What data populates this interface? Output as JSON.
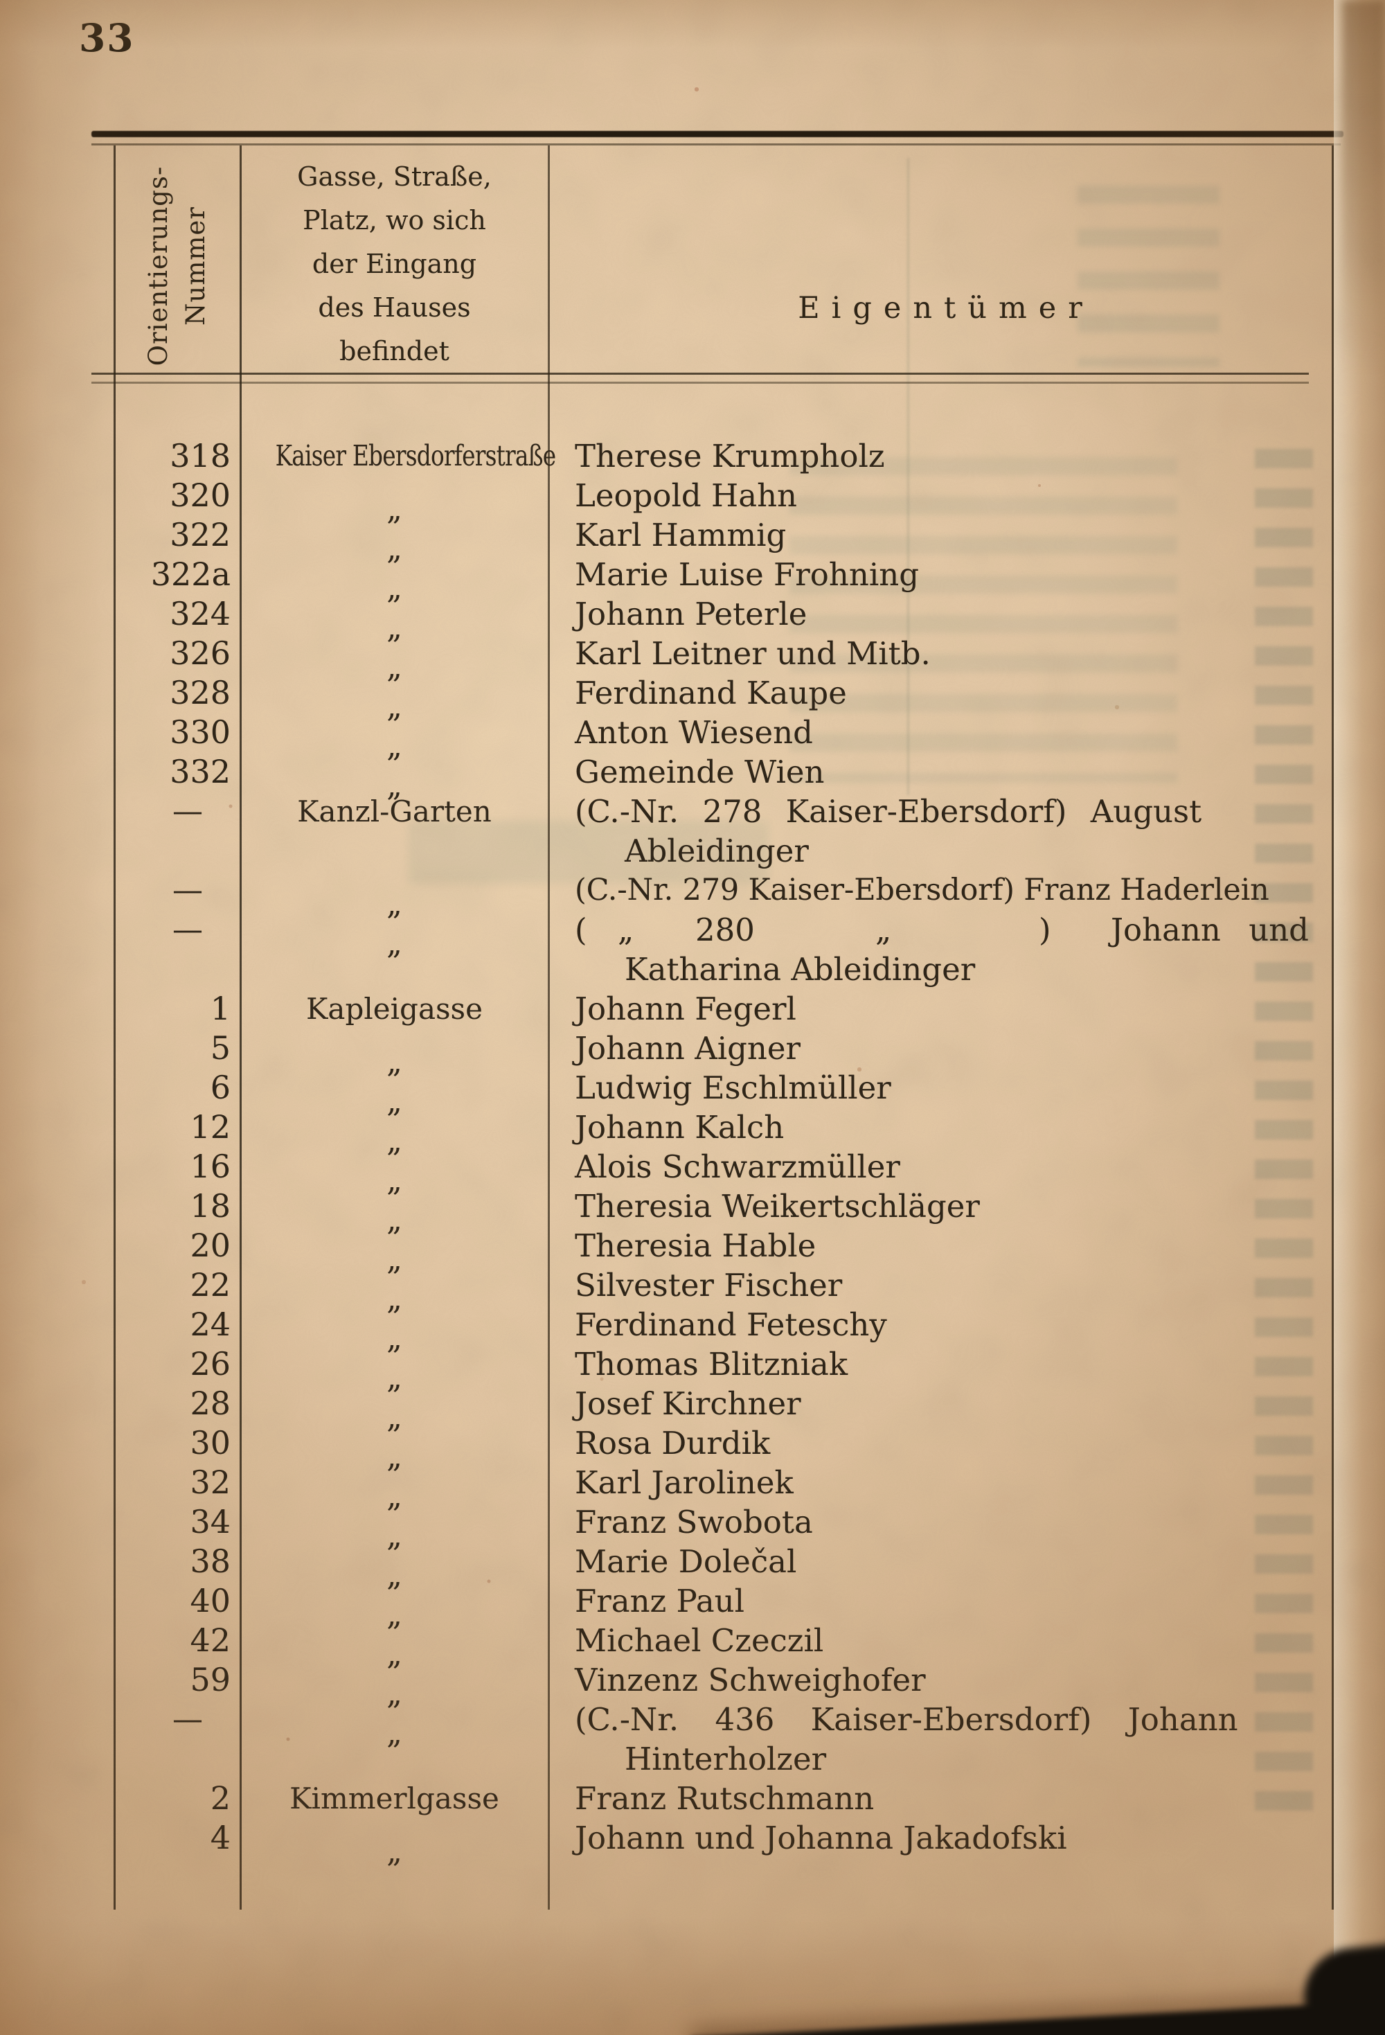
{
  "page_number": "33",
  "table": {
    "header": {
      "col1_line1": "Orientierungs-",
      "col1_line2": "Nummer",
      "col2_lines": [
        "Gasse, Straße,",
        "Platz, wo sich",
        "der Eingang",
        "des Hauses",
        "befindet"
      ],
      "col3": "Eigentümer"
    },
    "rows": [
      {
        "num": "318",
        "street": "Kaiser Ebersdorferstraße",
        "street_style": "condensed",
        "owner_lines": [
          "Therese Krumpholz"
        ]
      },
      {
        "num": "320",
        "street": "„",
        "street_style": "ditto",
        "owner_lines": [
          "Leopold Hahn"
        ]
      },
      {
        "num": "322",
        "street": "„",
        "street_style": "ditto",
        "owner_lines": [
          "Karl Hammig"
        ]
      },
      {
        "num": "322a",
        "street": "„",
        "street_style": "ditto",
        "owner_lines": [
          "Marie Luise Frohning"
        ]
      },
      {
        "num": "324",
        "street": "„",
        "street_style": "ditto",
        "owner_lines": [
          "Johann Peterle"
        ]
      },
      {
        "num": "326",
        "street": "„",
        "street_style": "ditto",
        "owner_lines": [
          "Karl Leitner und Mitb."
        ]
      },
      {
        "num": "328",
        "street": "„",
        "street_style": "ditto",
        "owner_lines": [
          "Ferdinand Kaupe"
        ]
      },
      {
        "num": "330",
        "street": "„",
        "street_style": "ditto",
        "owner_lines": [
          "Anton Wiesend"
        ]
      },
      {
        "num": "332",
        "street": "„",
        "street_style": "ditto",
        "owner_lines": [
          "Gemeinde Wien"
        ]
      },
      {
        "num": "—",
        "street": "Kanzl-Garten",
        "street_style": "name",
        "owner_lines": [
          {
            "t": "(C.-Nr. 278 Kaiser-Ebersdorf) August",
            "cls": "wide1"
          },
          {
            "t": "Ableidinger",
            "cls": "cont"
          }
        ]
      },
      {
        "num": "—",
        "street": "„",
        "street_style": "ditto",
        "owner_lines": [
          {
            "t": "(C.-Nr. 279 Kaiser-Ebersdorf) Franz Haderlein",
            "cls": "tight"
          }
        ]
      },
      {
        "num": "—",
        "street": "„",
        "street_style": "ditto",
        "owner_lines": [
          {
            "spread": [
              "(",
              "„",
              "280",
              "„",
              ")",
              "Johann und"
            ]
          },
          {
            "t": "Katharina Ableidinger",
            "cls": "cont"
          }
        ]
      },
      {
        "num": "1",
        "street": "Kapleigasse",
        "street_style": "name",
        "owner_lines": [
          "Johann Fegerl"
        ]
      },
      {
        "num": "5",
        "street": "„",
        "street_style": "ditto",
        "owner_lines": [
          "Johann Aigner"
        ]
      },
      {
        "num": "6",
        "street": "„",
        "street_style": "ditto",
        "owner_lines": [
          "Ludwig Eschlmüller"
        ]
      },
      {
        "num": "12",
        "street": "„",
        "street_style": "ditto",
        "owner_lines": [
          "Johann Kalch"
        ]
      },
      {
        "num": "16",
        "street": "„",
        "street_style": "ditto",
        "owner_lines": [
          "Alois Schwarzmüller"
        ]
      },
      {
        "num": "18",
        "street": "„",
        "street_style": "ditto",
        "owner_lines": [
          "Theresia Weikertschläger"
        ]
      },
      {
        "num": "20",
        "street": "„",
        "street_style": "ditto",
        "owner_lines": [
          "Theresia Hable"
        ]
      },
      {
        "num": "22",
        "street": "„",
        "street_style": "ditto",
        "owner_lines": [
          "Silvester Fischer"
        ]
      },
      {
        "num": "24",
        "street": "„",
        "street_style": "ditto",
        "owner_lines": [
          "Ferdinand Feteschy"
        ]
      },
      {
        "num": "26",
        "street": "„",
        "street_style": "ditto",
        "owner_lines": [
          "Thomas Blitzniak"
        ]
      },
      {
        "num": "28",
        "street": "„",
        "street_style": "ditto",
        "owner_lines": [
          "Josef Kirchner"
        ]
      },
      {
        "num": "30",
        "street": "„",
        "street_style": "ditto",
        "owner_lines": [
          "Rosa Durdik"
        ]
      },
      {
        "num": "32",
        "street": "„",
        "street_style": "ditto",
        "owner_lines": [
          "Karl Jarolinek"
        ]
      },
      {
        "num": "34",
        "street": "„",
        "street_style": "ditto",
        "owner_lines": [
          "Franz Swobota"
        ]
      },
      {
        "num": "38",
        "street": "„",
        "street_style": "ditto",
        "owner_lines": [
          "Marie Dolečal"
        ]
      },
      {
        "num": "40",
        "street": "„",
        "street_style": "ditto",
        "owner_lines": [
          "Franz Paul"
        ]
      },
      {
        "num": "42",
        "street": "„",
        "street_style": "ditto",
        "owner_lines": [
          "Michael Czeczil"
        ]
      },
      {
        "num": "59",
        "street": "„",
        "street_style": "ditto",
        "owner_lines": [
          "Vinzenz Schweighofer"
        ]
      },
      {
        "num": "—",
        "street": "„",
        "street_style": "ditto",
        "owner_lines": [
          {
            "t": "(C.-Nr. 436 Kaiser-Ebersdorf) Johann",
            "cls": "wide2"
          },
          {
            "t": "Hinterholzer",
            "cls": "cont"
          }
        ]
      },
      {
        "num": "2",
        "street": "Kimmerlgasse",
        "street_style": "name",
        "owner_lines": [
          "Franz Rutschmann"
        ]
      },
      {
        "num": "4",
        "street": "„",
        "street_style": "ditto",
        "owner_lines": [
          "Johann und Johanna Jakadofski"
        ]
      }
    ]
  },
  "colors": {
    "paper": "#e5c8a4",
    "ink": "#2f2518"
  }
}
